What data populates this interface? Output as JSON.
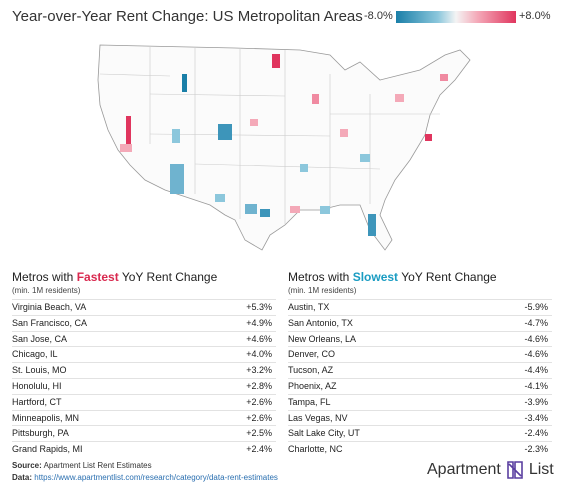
{
  "header": {
    "title": "Year-over-Year Rent Change: US Metropolitan Areas",
    "legend_min": "-8.0%",
    "legend_max": "+8.0%"
  },
  "fastest": {
    "title_start": "Metros with",
    "title_emphasis": "Fastest",
    "title_end": "YoY Rent Change",
    "note": "(min. 1M residents)",
    "rows": [
      [
        "Virginia Beach, VA",
        "+5.3%"
      ],
      [
        "San Francisco, CA",
        "+4.9%"
      ],
      [
        "San Jose, CA",
        "+4.6%"
      ],
      [
        "Chicago, IL",
        "+4.0%"
      ],
      [
        "St. Louis, MO",
        "+3.2%"
      ],
      [
        "Honolulu, HI",
        "+2.8%"
      ],
      [
        "Hartford, CT",
        "+2.6%"
      ],
      [
        "Minneapolis, MN",
        "+2.6%"
      ],
      [
        "Pittsburgh, PA",
        "+2.5%"
      ],
      [
        "Grand Rapids, MI",
        "+2.4%"
      ]
    ]
  },
  "slowest": {
    "title_start": "Metros with",
    "title_emphasis": "Slowest",
    "title_end": "YoY Rent Change",
    "note": "(min. 1M residents)",
    "rows": [
      [
        "Austin, TX",
        "-5.9%"
      ],
      [
        "San Antonio, TX",
        "-4.7%"
      ],
      [
        "New Orleans, LA",
        "-4.6%"
      ],
      [
        "Denver, CO",
        "-4.6%"
      ],
      [
        "Tucson, AZ",
        "-4.4%"
      ],
      [
        "Phoenix, AZ",
        "-4.1%"
      ],
      [
        "Tampa, FL",
        "-3.9%"
      ],
      [
        "Las Vegas, NV",
        "-3.4%"
      ],
      [
        "Salt Lake City, UT",
        "-2.4%"
      ],
      [
        "Charlotte, NC",
        "-2.3%"
      ]
    ]
  },
  "footer": {
    "source_label": "Source:",
    "source": "Apartment List Rent Estimates",
    "data_label": "Data:",
    "data_url": "https://www.apartmentlist.com/research/category/data-rent-estimates",
    "brand_left": "Apartment",
    "brand_right": "List"
  }
}
